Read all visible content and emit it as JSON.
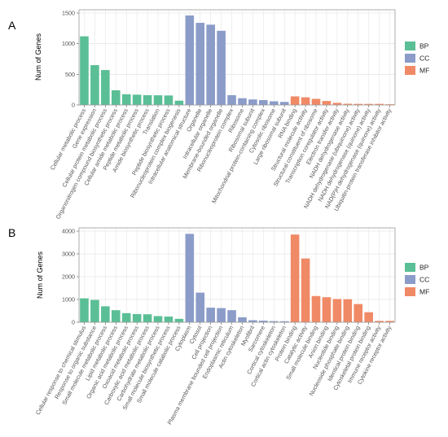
{
  "colors": {
    "BP": "#5bbf96",
    "CC": "#8b9cc9",
    "MF": "#f08a66",
    "grid": "#e6e6e6",
    "frame": "#999999",
    "background": "#ffffff"
  },
  "chart_data": [
    {
      "type": "bar",
      "panel_label": "A",
      "ylabel": "Num of Genes",
      "ylim": [
        0,
        1500
      ],
      "yticks": [
        0,
        500,
        1000,
        1500
      ],
      "grid": true,
      "legend_placement": "right",
      "legend": [
        "BP",
        "CC",
        "MF"
      ],
      "categories": [
        "Cellular metabolic process",
        "Gene expression",
        "Cellular protein metabolic process",
        "Organonitrogen compound biosynthetic process",
        "Cellular amide metabolic process",
        "Peptide metabolic process",
        "Amide biosynthetic process",
        "Translation",
        "Peptide biosynthetic process",
        "Ribonucleoprotein complex biogenesis",
        "Intracellular anatomical structure",
        "Organelle",
        "Intracellular organelle",
        "Membrane-bounded organelle",
        "Ribonucleoprotein complex",
        "Ribosome",
        "Ribosomal subunit",
        "Mitochondrial protein-containing complex",
        "Cytosolic ribosome",
        "Large ribosomal subunit",
        "RNA binding",
        "Structural molecule activity",
        "Structural constituent of ribosome",
        "Transcription coregulator activity",
        "Electron transfer activity",
        "NADH dehydrogenase activity",
        "NADH dehydrogenase (ubiquinone) activity",
        "NADH dehydrogenase (quinone) activity",
        "NAD(P)H dehydrogenase (quinone) activity",
        "Ubiquitin-protein transferase inhibitor activity"
      ],
      "groups": [
        "BP",
        "BP",
        "BP",
        "BP",
        "BP",
        "BP",
        "BP",
        "BP",
        "BP",
        "BP",
        "CC",
        "CC",
        "CC",
        "CC",
        "CC",
        "CC",
        "CC",
        "CC",
        "CC",
        "CC",
        "MF",
        "MF",
        "MF",
        "MF",
        "MF",
        "MF",
        "MF",
        "MF",
        "MF",
        "MF"
      ],
      "values": [
        1120,
        650,
        570,
        240,
        175,
        168,
        160,
        158,
        155,
        70,
        1460,
        1340,
        1310,
        1210,
        160,
        110,
        90,
        80,
        60,
        50,
        140,
        125,
        100,
        65,
        35,
        20,
        18,
        18,
        18,
        12
      ]
    },
    {
      "type": "bar",
      "panel_label": "B",
      "ylabel": "Num of Genes",
      "ylim": [
        0,
        4000
      ],
      "yticks": [
        0,
        1000,
        2000,
        3000,
        4000
      ],
      "grid": true,
      "legend_placement": "right",
      "legend": [
        "BP",
        "CC",
        "MF"
      ],
      "categories": [
        "Cellular response to chemical stimulus",
        "Response to organic substance",
        "Small molecule metabolic process",
        "Lipid metabolic process",
        "Organic acid metabolic process",
        "Oxoacid metabolic process",
        "Carboxylic acid metabolic process",
        "Carbohydrate metabolic process",
        "Small molecule biosynthetic process",
        "Small molecule catabolic process",
        "Cytoplasm",
        "Cytosol",
        "Cell projection",
        "Plasma membrane bounded cell projection",
        "Endoplasmic reticulum",
        "Actin cytoskeleton",
        "Myofibril",
        "Sarcomere",
        "Cortical cytoskeleton",
        "Cortical actin cytoskeleton",
        "Protein binding",
        "Catalytic activity",
        "Small molecule binding",
        "Anion binding",
        "Nucleotide binding",
        "Nucleoside phosphate binding",
        "Identical protein binding",
        "Cytoskeletal protein binding",
        "Immune receptor activity",
        "Cytokine receptor activity"
      ],
      "groups": [
        "BP",
        "BP",
        "BP",
        "BP",
        "BP",
        "BP",
        "BP",
        "BP",
        "BP",
        "BP",
        "CC",
        "CC",
        "CC",
        "CC",
        "CC",
        "CC",
        "CC",
        "CC",
        "CC",
        "CC",
        "MF",
        "MF",
        "MF",
        "MF",
        "MF",
        "MF",
        "MF",
        "MF",
        "MF",
        "MF"
      ],
      "values": [
        1050,
        980,
        700,
        530,
        400,
        360,
        350,
        270,
        250,
        150,
        3880,
        1300,
        640,
        620,
        530,
        220,
        90,
        70,
        50,
        45,
        3850,
        2800,
        1150,
        1100,
        1020,
        1010,
        800,
        440,
        60,
        60
      ]
    }
  ]
}
